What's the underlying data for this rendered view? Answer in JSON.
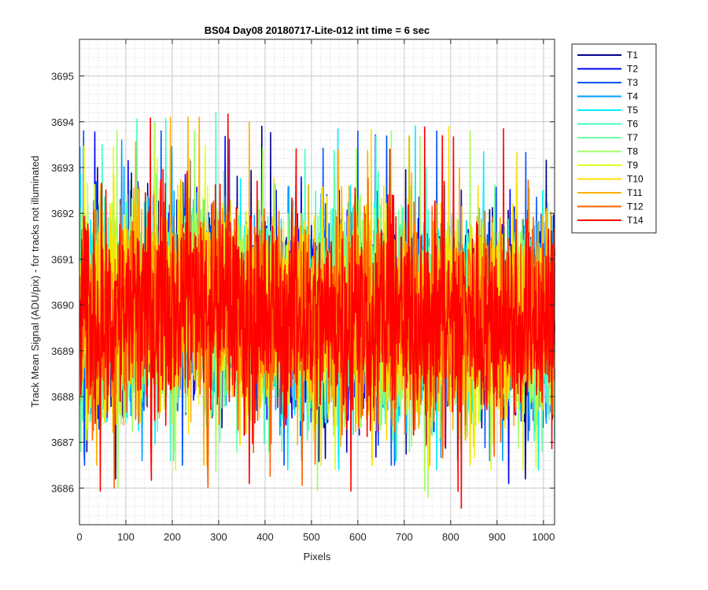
{
  "chart_data": {
    "type": "line",
    "title": "BS04 Day08 20180717-Lite-012 int time = 6 sec",
    "xlabel": "Pixels",
    "ylabel": "Track Mean Signal (ADU/pix) - for tracks not illuminated",
    "xlim": [
      0,
      1024
    ],
    "ylim": [
      3685.2,
      3695.8
    ],
    "x_ticks": [
      0,
      100,
      200,
      300,
      400,
      500,
      600,
      700,
      800,
      900,
      1000
    ],
    "y_ticks": [
      3686,
      3687,
      3688,
      3689,
      3690,
      3691,
      3692,
      3693,
      3694,
      3695
    ],
    "grid": true,
    "minor_grid": true,
    "legend_position": "outside-top-right",
    "x_range": [
      1,
      1024
    ],
    "approx_mean": 3689.8,
    "approx_peak_to_peak": [
      3685.2,
      3695.8
    ],
    "series": [
      {
        "name": "T1",
        "color": "#00008F",
        "y_range": [
          3686.2,
          3693.9
        ]
      },
      {
        "name": "T2",
        "color": "#0000FF",
        "y_range": [
          3686.1,
          3694.5
        ]
      },
      {
        "name": "T3",
        "color": "#0050FF",
        "y_range": [
          3686.5,
          3693.8
        ]
      },
      {
        "name": "T4",
        "color": "#009FFF",
        "y_range": [
          3686.6,
          3693.6
        ]
      },
      {
        "name": "T5",
        "color": "#00EFFF",
        "y_range": [
          3686.4,
          3695.8
        ]
      },
      {
        "name": "T6",
        "color": "#40FFBF",
        "y_range": [
          3686.6,
          3694.2
        ]
      },
      {
        "name": "T7",
        "color": "#70FFA0",
        "y_range": [
          3686.8,
          3693.9
        ]
      },
      {
        "name": "T8",
        "color": "#A0FF60",
        "y_range": [
          3685.8,
          3693.8
        ]
      },
      {
        "name": "T9",
        "color": "#DFFF20",
        "y_range": [
          3686.4,
          3694.2
        ]
      },
      {
        "name": "T10",
        "color": "#FFDF00",
        "y_range": [
          3686.5,
          3694.3
        ]
      },
      {
        "name": "T11",
        "color": "#FFB000",
        "y_range": [
          3686.5,
          3694.1
        ]
      },
      {
        "name": "T12",
        "color": "#FF6000",
        "y_range": [
          3686.0,
          3693.8
        ]
      },
      {
        "name": "T14",
        "color": "#FF0000",
        "y_range": [
          3685.2,
          3694.4
        ]
      }
    ]
  }
}
